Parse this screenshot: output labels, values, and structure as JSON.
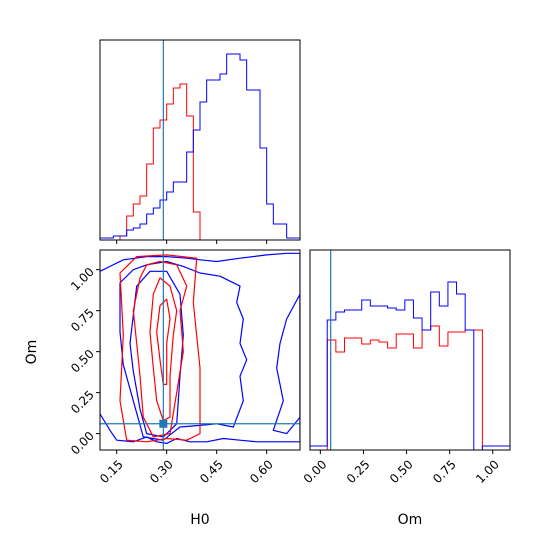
{
  "chart_data": {
    "type": "corner",
    "parameters": [
      "H0",
      "Om"
    ],
    "colors": {
      "red_run": "#ff0000",
      "blue_run": "#0000ff",
      "truth": "#1f77b4"
    },
    "truth": {
      "H0": 0.29,
      "Om": 0.06
    },
    "hist_H0": {
      "xlim": [
        0.1,
        0.7
      ],
      "ticks": [
        "0.15",
        "0.30",
        "0.45",
        "0.60"
      ],
      "tick_values": [
        0.15,
        0.3,
        0.45,
        0.6
      ],
      "ymax": 1.0,
      "bins": [
        0.1,
        0.12,
        0.14,
        0.16,
        0.18,
        0.2,
        0.22,
        0.24,
        0.26,
        0.28,
        0.3,
        0.32,
        0.34,
        0.36,
        0.38,
        0.4,
        0.42,
        0.44,
        0.46,
        0.48,
        0.5,
        0.52,
        0.54,
        0.56,
        0.58,
        0.6,
        0.62,
        0.64,
        0.66,
        0.68,
        0.7
      ],
      "series": [
        {
          "name": "red",
          "color": "#ff0000",
          "values": [
            0,
            0,
            0,
            0.02,
            0.12,
            0.18,
            0.22,
            0.38,
            0.56,
            0.6,
            0.68,
            0.76,
            0.78,
            0.62,
            0.14,
            0.0,
            0,
            0,
            0,
            0,
            0,
            0,
            0,
            0,
            0,
            0,
            0,
            0,
            0,
            0
          ]
        },
        {
          "name": "blue",
          "color": "#0000ff",
          "values": [
            0.01,
            0.01,
            0.02,
            0.02,
            0.05,
            0.06,
            0.08,
            0.13,
            0.16,
            0.2,
            0.24,
            0.29,
            0.29,
            0.44,
            0.55,
            0.69,
            0.8,
            0.8,
            0.83,
            0.93,
            0.93,
            0.9,
            0.75,
            0.75,
            0.46,
            0.18,
            0.08,
            0.08,
            0.01,
            0.01
          ]
        }
      ]
    },
    "hist_Om": {
      "xlim": [
        -0.06,
        1.1
      ],
      "ticks": [
        "0.00",
        "0.25",
        "0.50",
        "0.75",
        "1.00"
      ],
      "tick_values": [
        0.0,
        0.25,
        0.5,
        0.75,
        1.0
      ],
      "ymax": 1.0,
      "bins": [
        -0.06,
        -0.01,
        0.04,
        0.09,
        0.14,
        0.19,
        0.24,
        0.29,
        0.34,
        0.39,
        0.44,
        0.49,
        0.54,
        0.59,
        0.64,
        0.69,
        0.74,
        0.79,
        0.84,
        0.89,
        0.94,
        0.99,
        1.04,
        1.1
      ],
      "series": [
        {
          "name": "red",
          "color": "#ff0000",
          "values": [
            0,
            0,
            0.55,
            0.49,
            0.56,
            0.56,
            0.53,
            0.55,
            0.54,
            0.51,
            0.58,
            0.58,
            0.51,
            0.6,
            0.62,
            0.52,
            0.59,
            0.59,
            0.6,
            0.6,
            0,
            0,
            0
          ]
        },
        {
          "name": "blue",
          "color": "#0000ff",
          "values": [
            0.02,
            0.02,
            0.65,
            0.69,
            0.7,
            0.7,
            0.75,
            0.72,
            0.72,
            0.71,
            0.7,
            0.75,
            0.66,
            0.6,
            0.79,
            0.72,
            0.84,
            0.78,
            0.6,
            0.0,
            0.02,
            0.02,
            0.02
          ]
        }
      ]
    },
    "contour_panel": {
      "xlabel": "H0",
      "ylabel": "Om",
      "xlim": [
        0.1,
        0.7
      ],
      "ylim": [
        -0.1,
        1.12
      ],
      "xticks": [
        "0.15",
        "0.30",
        "0.45",
        "0.60"
      ],
      "xtick_values": [
        0.15,
        0.3,
        0.45,
        0.6
      ],
      "yticks": [
        "0.00",
        "0.25",
        "0.50",
        "0.75",
        "1.00"
      ],
      "ytick_values": [
        0.0,
        0.25,
        0.5,
        0.75,
        1.0
      ],
      "contours": [
        {
          "color": "#0000ff",
          "points": [
            [
              0.1,
              0.12
            ],
            [
              0.13,
              0.02
            ],
            [
              0.15,
              -0.04
            ],
            [
              0.2,
              -0.05
            ],
            [
              0.24,
              -0.02
            ],
            [
              0.27,
              -0.05
            ],
            [
              0.3,
              -0.06
            ],
            [
              0.33,
              -0.03
            ],
            [
              0.37,
              -0.05
            ],
            [
              0.42,
              -0.05
            ],
            [
              0.47,
              -0.03
            ],
            [
              0.52,
              -0.04
            ],
            [
              0.57,
              -0.05
            ],
            [
              0.62,
              -0.05
            ],
            [
              0.7,
              -0.05
            ],
            [
              0.7,
              1.1
            ],
            [
              0.66,
              1.1
            ],
            [
              0.6,
              1.09
            ],
            [
              0.52,
              1.07
            ],
            [
              0.45,
              1.05
            ],
            [
              0.4,
              1.06
            ],
            [
              0.36,
              1.07
            ],
            [
              0.3,
              1.08
            ],
            [
              0.24,
              1.08
            ],
            [
              0.17,
              1.06
            ],
            [
              0.13,
              1.02
            ],
            [
              0.1,
              0.99
            ]
          ]
        },
        {
          "color": "#0000ff",
          "points": [
            [
              0.16,
              0.62
            ],
            [
              0.17,
              0.42
            ],
            [
              0.2,
              0.2
            ],
            [
              0.23,
              -0.02
            ],
            [
              0.29,
              -0.04
            ],
            [
              0.34,
              0.04
            ],
            [
              0.4,
              0.05
            ],
            [
              0.45,
              0.06
            ],
            [
              0.5,
              0.04
            ],
            [
              0.53,
              0.2
            ],
            [
              0.52,
              0.35
            ],
            [
              0.54,
              0.45
            ],
            [
              0.52,
              0.55
            ],
            [
              0.53,
              0.7
            ],
            [
              0.51,
              0.8
            ],
            [
              0.52,
              0.9
            ],
            [
              0.46,
              0.96
            ],
            [
              0.4,
              0.98
            ],
            [
              0.35,
              1.02
            ],
            [
              0.3,
              1.05
            ],
            [
              0.24,
              1.03
            ],
            [
              0.2,
              1.0
            ],
            [
              0.16,
              0.92
            ]
          ]
        },
        {
          "color": "#0000ff",
          "points": [
            [
              0.19,
              0.55
            ],
            [
              0.2,
              0.38
            ],
            [
              0.22,
              0.15
            ],
            [
              0.24,
              0.0
            ],
            [
              0.29,
              -0.02
            ],
            [
              0.33,
              0.06
            ],
            [
              0.34,
              0.35
            ],
            [
              0.35,
              0.6
            ],
            [
              0.34,
              0.85
            ],
            [
              0.3,
              0.99
            ],
            [
              0.25,
              0.99
            ],
            [
              0.21,
              0.9
            ]
          ]
        },
        {
          "color": "#0000ff",
          "points": [
            [
              0.62,
              0.02
            ],
            [
              0.65,
              0.2
            ],
            [
              0.63,
              0.4
            ],
            [
              0.64,
              0.55
            ],
            [
              0.66,
              0.7
            ],
            [
              0.7,
              0.85
            ],
            [
              0.7,
              0.1
            ],
            [
              0.66,
              0.0
            ]
          ]
        },
        {
          "color": "#ff0000",
          "points": [
            [
              0.22,
              0.35
            ],
            [
              0.23,
              0.1
            ],
            [
              0.26,
              -0.02
            ],
            [
              0.31,
              0.0
            ],
            [
              0.33,
              0.25
            ],
            [
              0.35,
              0.5
            ],
            [
              0.34,
              0.75
            ],
            [
              0.36,
              0.9
            ],
            [
              0.33,
              1.03
            ],
            [
              0.28,
              1.05
            ],
            [
              0.24,
              1.03
            ],
            [
              0.22,
              0.95
            ],
            [
              0.2,
              0.75
            ],
            [
              0.21,
              0.55
            ]
          ]
        },
        {
          "color": "#ff0000",
          "points": [
            [
              0.26,
              0.4
            ],
            [
              0.27,
              0.2
            ],
            [
              0.29,
              0.08
            ],
            [
              0.31,
              0.1
            ],
            [
              0.31,
              0.35
            ],
            [
              0.32,
              0.6
            ],
            [
              0.33,
              0.75
            ],
            [
              0.31,
              0.9
            ],
            [
              0.28,
              0.95
            ],
            [
              0.26,
              0.85
            ],
            [
              0.25,
              0.62
            ]
          ]
        },
        {
          "color": "#ff0000",
          "points": [
            [
              0.28,
              0.45
            ],
            [
              0.29,
              0.3
            ],
            [
              0.3,
              0.3
            ],
            [
              0.3,
              0.55
            ],
            [
              0.31,
              0.7
            ],
            [
              0.3,
              0.82
            ],
            [
              0.28,
              0.78
            ],
            [
              0.27,
              0.62
            ]
          ]
        },
        {
          "color": "#ff0000",
          "points": [
            [
              0.16,
              0.98
            ],
            [
              0.17,
              0.6
            ],
            [
              0.16,
              0.2
            ],
            [
              0.18,
              -0.04
            ],
            [
              0.24,
              -0.05
            ],
            [
              0.3,
              -0.03
            ],
            [
              0.36,
              -0.04
            ],
            [
              0.4,
              0.0
            ],
            [
              0.4,
              0.4
            ],
            [
              0.38,
              0.8
            ],
            [
              0.39,
              1.07
            ],
            [
              0.3,
              1.09
            ],
            [
              0.21,
              1.08
            ]
          ]
        }
      ]
    }
  }
}
